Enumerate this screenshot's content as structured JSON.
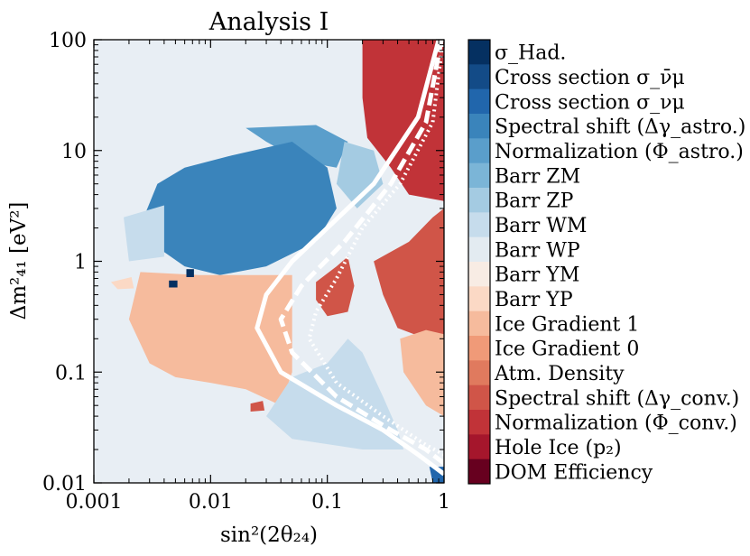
{
  "chart_data": {
    "type": "heatmap",
    "title": "Analysis I",
    "xlabel": "sin²(2θ₂₄)",
    "ylabel": "Δm²₄₁ [eV²]",
    "xscale": "log",
    "yscale": "log",
    "xlim": [
      0.001,
      1
    ],
    "ylim": [
      0.01,
      100
    ],
    "xticks": [
      {
        "value": 0.001,
        "label": "0.001"
      },
      {
        "value": 0.01,
        "label": "0.01"
      },
      {
        "value": 0.1,
        "label": "0.1"
      },
      {
        "value": 1,
        "label": "1"
      }
    ],
    "yticks": [
      {
        "value": 0.01,
        "label": "0.01"
      },
      {
        "value": 0.1,
        "label": "0.1"
      },
      {
        "value": 1,
        "label": "1"
      },
      {
        "value": 10,
        "label": "10"
      },
      {
        "value": 100,
        "label": "100"
      }
    ],
    "background_color": "#e8eef4",
    "legend_position": "right",
    "legend": [
      {
        "label": "σ_Had.",
        "color": "#053061"
      },
      {
        "label": "Cross section σ_ν̄μ",
        "color": "#134b87"
      },
      {
        "label": "Cross section σ_νμ",
        "color": "#2166ac"
      },
      {
        "label": "Spectral shift (Δγ_astro.)",
        "color": "#3a84bb"
      },
      {
        "label": "Normalization (Φ_astro.)",
        "color": "#5a9ecb"
      },
      {
        "label": "Barr ZM",
        "color": "#7bb5d7"
      },
      {
        "label": "Barr ZP",
        "color": "#a4cbe2"
      },
      {
        "label": "Barr WM",
        "color": "#c6dcec"
      },
      {
        "label": "Barr WP",
        "color": "#e3ebf1"
      },
      {
        "label": "Barr YM",
        "color": "#f8ece4"
      },
      {
        "label": "Barr YP",
        "color": "#fbd9c5"
      },
      {
        "label": "Ice Gradient 1",
        "color": "#f6bb9d"
      },
      {
        "label": "Ice Gradient 0",
        "color": "#f09a78"
      },
      {
        "label": "Atm. Density",
        "color": "#e07a5e"
      },
      {
        "label": "Spectral shift (Δγ_conv.)",
        "color": "#d05548"
      },
      {
        "label": "Normalization (Φ_conv.)",
        "color": "#c13338"
      },
      {
        "label": "Hole Ice (p₂)",
        "color": "#a5162c"
      },
      {
        "label": "DOM Efficiency",
        "color": "#67001f"
      }
    ],
    "regions": [
      {
        "systematic": "Normalization (Φ_conv.)",
        "color": "#c13338",
        "points": [
          [
            0.2,
            100
          ],
          [
            1,
            100
          ],
          [
            1,
            3.5
          ],
          [
            0.5,
            4
          ],
          [
            0.35,
            7
          ],
          [
            0.22,
            13
          ],
          [
            0.2,
            30
          ]
        ]
      },
      {
        "systematic": "Normalization (Φ_astro.)",
        "color": "#5a9ecb",
        "points": [
          [
            0.02,
            16
          ],
          [
            0.08,
            17
          ],
          [
            0.15,
            12
          ],
          [
            0.12,
            7
          ],
          [
            0.06,
            8
          ],
          [
            0.03,
            12
          ]
        ]
      },
      {
        "systematic": "Spectral shift (Δγ_astro.)",
        "color": "#3a84bb",
        "points": [
          [
            0.0035,
            5
          ],
          [
            0.006,
            7
          ],
          [
            0.015,
            9
          ],
          [
            0.05,
            12
          ],
          [
            0.1,
            7
          ],
          [
            0.12,
            3
          ],
          [
            0.08,
            1.5
          ],
          [
            0.03,
            0.9
          ],
          [
            0.012,
            0.75
          ],
          [
            0.006,
            0.9
          ],
          [
            0.003,
            1.5
          ],
          [
            0.0028,
            2.8
          ]
        ]
      },
      {
        "systematic": "Barr WM",
        "color": "#c6dcec",
        "points": [
          [
            0.0018,
            2.5
          ],
          [
            0.004,
            3.2
          ],
          [
            0.004,
            1.1
          ],
          [
            0.002,
            1
          ]
        ]
      },
      {
        "systematic": "Barr ZP",
        "color": "#a4cbe2",
        "points": [
          [
            0.14,
            12
          ],
          [
            0.25,
            10
          ],
          [
            0.3,
            5
          ],
          [
            0.18,
            3
          ],
          [
            0.12,
            5
          ]
        ]
      },
      {
        "systematic": "Ice Gradient 1",
        "color": "#f6bb9d",
        "points": [
          [
            0.0025,
            0.8
          ],
          [
            0.008,
            0.75
          ],
          [
            0.05,
            0.75
          ],
          [
            0.05,
            0.1
          ],
          [
            0.04,
            0.05
          ],
          [
            0.02,
            0.07
          ],
          [
            0.01,
            0.08
          ],
          [
            0.005,
            0.09
          ],
          [
            0.003,
            0.12
          ],
          [
            0.002,
            0.3
          ]
        ]
      },
      {
        "systematic": "Barr YP",
        "color": "#fbd9c5",
        "points": [
          [
            0.0014,
            0.65
          ],
          [
            0.0021,
            0.72
          ],
          [
            0.0022,
            0.57
          ],
          [
            0.0016,
            0.56
          ]
        ]
      },
      {
        "systematic": "Barr WM",
        "color": "#c6dcec",
        "points": [
          [
            0.05,
            0.09
          ],
          [
            0.1,
            0.12
          ],
          [
            0.15,
            0.2
          ],
          [
            0.2,
            0.15
          ],
          [
            0.3,
            0.06
          ],
          [
            0.4,
            0.03
          ],
          [
            0.45,
            0.02
          ],
          [
            0.2,
            0.02
          ],
          [
            0.05,
            0.025
          ],
          [
            0.03,
            0.04
          ]
        ]
      },
      {
        "systematic": "Spectral shift (Δγ_conv.)",
        "color": "#d05548",
        "points": [
          [
            0.08,
            0.65
          ],
          [
            0.12,
            0.9
          ],
          [
            0.15,
            1.1
          ],
          [
            0.17,
            0.6
          ],
          [
            0.15,
            0.35
          ],
          [
            0.1,
            0.32
          ],
          [
            0.08,
            0.45
          ]
        ]
      },
      {
        "systematic": "Spectral shift (Δγ_conv.)",
        "color": "#d05548",
        "points": [
          [
            0.25,
            1
          ],
          [
            0.5,
            1.5
          ],
          [
            0.8,
            2.5
          ],
          [
            1,
            3
          ],
          [
            1,
            0.22
          ],
          [
            0.7,
            0.2
          ],
          [
            0.4,
            0.25
          ],
          [
            0.3,
            0.5
          ]
        ]
      },
      {
        "systematic": "Ice Gradient 1",
        "color": "#f6bb9d",
        "points": [
          [
            0.42,
            0.2
          ],
          [
            0.7,
            0.24
          ],
          [
            1,
            0.22
          ],
          [
            1,
            0.04
          ],
          [
            0.7,
            0.05
          ],
          [
            0.45,
            0.1
          ]
        ]
      },
      {
        "systematic": "Spectral shift (Δγ_conv.)",
        "color": "#d05548",
        "points": [
          [
            0.022,
            0.052
          ],
          [
            0.028,
            0.055
          ],
          [
            0.029,
            0.045
          ],
          [
            0.022,
            0.044
          ]
        ]
      },
      {
        "systematic": "Cross section σ_νμ",
        "color": "#2166ac",
        "points": [
          [
            0.75,
            0.014
          ],
          [
            1,
            0.014
          ],
          [
            1,
            0.01
          ],
          [
            0.8,
            0.01
          ]
        ]
      },
      {
        "systematic": "σ_Had.",
        "color": "#053061",
        "points": [
          [
            0.0062,
            0.85
          ],
          [
            0.0072,
            0.85
          ],
          [
            0.0072,
            0.72
          ],
          [
            0.0062,
            0.72
          ]
        ]
      },
      {
        "systematic": "σ_Had.",
        "color": "#053061",
        "points": [
          [
            0.0044,
            0.67
          ],
          [
            0.0052,
            0.67
          ],
          [
            0.0052,
            0.58
          ],
          [
            0.0044,
            0.58
          ]
        ]
      }
    ],
    "contours": [
      {
        "name": "solid",
        "style": "solid",
        "points": [
          [
            0.9,
            100
          ],
          [
            0.6,
            20
          ],
          [
            0.25,
            5
          ],
          [
            0.1,
            2
          ],
          [
            0.05,
            1
          ],
          [
            0.03,
            0.5
          ],
          [
            0.025,
            0.25
          ],
          [
            0.04,
            0.1
          ],
          [
            0.12,
            0.05
          ],
          [
            0.3,
            0.03
          ],
          [
            0.6,
            0.018
          ],
          [
            1,
            0.012
          ]
        ]
      },
      {
        "name": "dashed",
        "style": "dashed",
        "points": [
          [
            0.95,
            100
          ],
          [
            0.7,
            18
          ],
          [
            0.35,
            5
          ],
          [
            0.14,
            1.5
          ],
          [
            0.06,
            0.6
          ],
          [
            0.04,
            0.3
          ],
          [
            0.05,
            0.15
          ],
          [
            0.12,
            0.06
          ],
          [
            0.35,
            0.03
          ],
          [
            0.7,
            0.02
          ],
          [
            1,
            0.015
          ]
        ]
      },
      {
        "name": "dotted",
        "style": "dotted",
        "points": [
          [
            0.98,
            100
          ],
          [
            0.8,
            18
          ],
          [
            0.42,
            5
          ],
          [
            0.2,
            2
          ],
          [
            0.12,
            0.7
          ],
          [
            0.08,
            0.35
          ],
          [
            0.07,
            0.2
          ],
          [
            0.12,
            0.08
          ],
          [
            0.3,
            0.04
          ],
          [
            0.7,
            0.022
          ],
          [
            1,
            0.018
          ]
        ]
      }
    ]
  }
}
